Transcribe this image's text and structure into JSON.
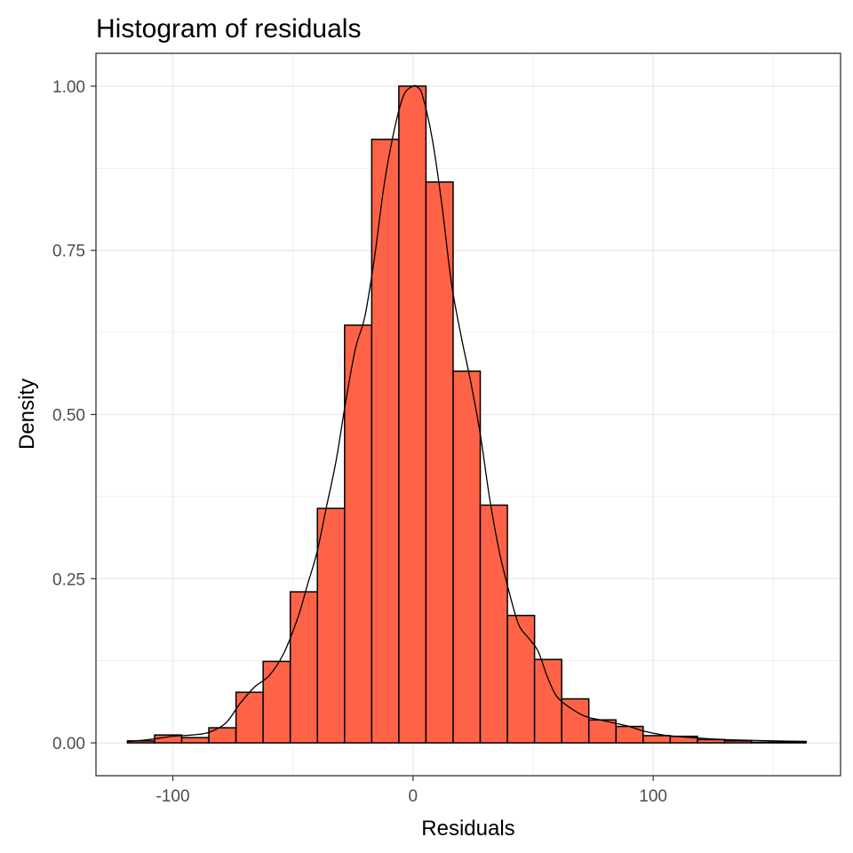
{
  "chart_data": {
    "type": "bar",
    "title": "Histogram of residuals",
    "xlabel": "Residuals",
    "ylabel": "Density",
    "xlim": [
      -132,
      178
    ],
    "ylim": [
      -0.05,
      1.05
    ],
    "x_ticks": [
      -100,
      0,
      100
    ],
    "x_tick_labels": [
      "-100",
      "0",
      "100"
    ],
    "y_ticks": [
      0,
      0.25,
      0.5,
      0.75,
      1.0
    ],
    "y_tick_labels": [
      "0.00",
      "0.25",
      "0.50",
      "0.75",
      "1.00"
    ],
    "x_minor_gridlines": [
      -50,
      50,
      150
    ],
    "y_minor_gridlines": [
      0.125,
      0.375,
      0.625,
      0.875
    ],
    "grid": true,
    "bin_width": 11.3,
    "bins": [
      {
        "x0": -118.9,
        "x1": -107.6,
        "density": 0.003
      },
      {
        "x0": -107.6,
        "x1": -96.3,
        "density": 0.012
      },
      {
        "x0": -96.3,
        "x1": -85.0,
        "density": 0.008
      },
      {
        "x0": -85.0,
        "x1": -73.7,
        "density": 0.023
      },
      {
        "x0": -73.7,
        "x1": -62.4,
        "density": 0.077
      },
      {
        "x0": -62.4,
        "x1": -51.1,
        "density": 0.124
      },
      {
        "x0": -51.1,
        "x1": -39.8,
        "density": 0.23
      },
      {
        "x0": -39.8,
        "x1": -28.5,
        "density": 0.357
      },
      {
        "x0": -28.5,
        "x1": -17.2,
        "density": 0.636
      },
      {
        "x0": -17.2,
        "x1": -5.9,
        "density": 0.919
      },
      {
        "x0": -5.9,
        "x1": 5.4,
        "density": 1.0
      },
      {
        "x0": 5.4,
        "x1": 16.7,
        "density": 0.854
      },
      {
        "x0": 16.7,
        "x1": 28.0,
        "density": 0.566
      },
      {
        "x0": 28.0,
        "x1": 39.3,
        "density": 0.362
      },
      {
        "x0": 39.3,
        "x1": 50.6,
        "density": 0.194
      },
      {
        "x0": 50.6,
        "x1": 61.9,
        "density": 0.127
      },
      {
        "x0": 61.9,
        "x1": 73.2,
        "density": 0.067
      },
      {
        "x0": 73.2,
        "x1": 84.5,
        "density": 0.035
      },
      {
        "x0": 84.5,
        "x1": 95.8,
        "density": 0.025
      },
      {
        "x0": 95.8,
        "x1": 107.1,
        "density": 0.011
      },
      {
        "x0": 107.1,
        "x1": 118.4,
        "density": 0.01
      },
      {
        "x0": 118.4,
        "x1": 129.7,
        "density": 0.005
      },
      {
        "x0": 129.7,
        "x1": 141.0,
        "density": 0.003
      },
      {
        "x0": 141.0,
        "x1": 152.3,
        "density": 0.001
      },
      {
        "x0": 152.3,
        "x1": 163.6,
        "density": 0.002
      }
    ],
    "density_curve": {
      "x": [
        -119,
        -110,
        -100,
        -92,
        -85,
        -78,
        -72,
        -66,
        -60,
        -54,
        -48,
        -44,
        -40,
        -36,
        -32,
        -28,
        -24,
        -20,
        -16,
        -12,
        -8,
        -4,
        0,
        2,
        4,
        8,
        12,
        16,
        20,
        24,
        28,
        32,
        36,
        40,
        44,
        48,
        52,
        56,
        60,
        66,
        72,
        78,
        84,
        90,
        96,
        104,
        112,
        120,
        130,
        140,
        150,
        164
      ],
      "y": [
        0.002,
        0.005,
        0.01,
        0.012,
        0.016,
        0.03,
        0.06,
        0.085,
        0.102,
        0.135,
        0.19,
        0.24,
        0.29,
        0.36,
        0.43,
        0.52,
        0.6,
        0.65,
        0.74,
        0.85,
        0.93,
        0.985,
        1.0,
        0.998,
        0.985,
        0.92,
        0.82,
        0.7,
        0.62,
        0.55,
        0.47,
        0.37,
        0.29,
        0.23,
        0.18,
        0.16,
        0.14,
        0.1,
        0.07,
        0.052,
        0.04,
        0.035,
        0.03,
        0.025,
        0.018,
        0.012,
        0.009,
        0.007,
        0.005,
        0.004,
        0.003,
        0.002
      ]
    },
    "colors": {
      "bar_fill": "#ff6347",
      "bar_stroke": "#000000",
      "curve": "#000000",
      "grid": "#ebebeb",
      "panel_border": "#333333",
      "tick_text": "#4d4d4d"
    }
  }
}
